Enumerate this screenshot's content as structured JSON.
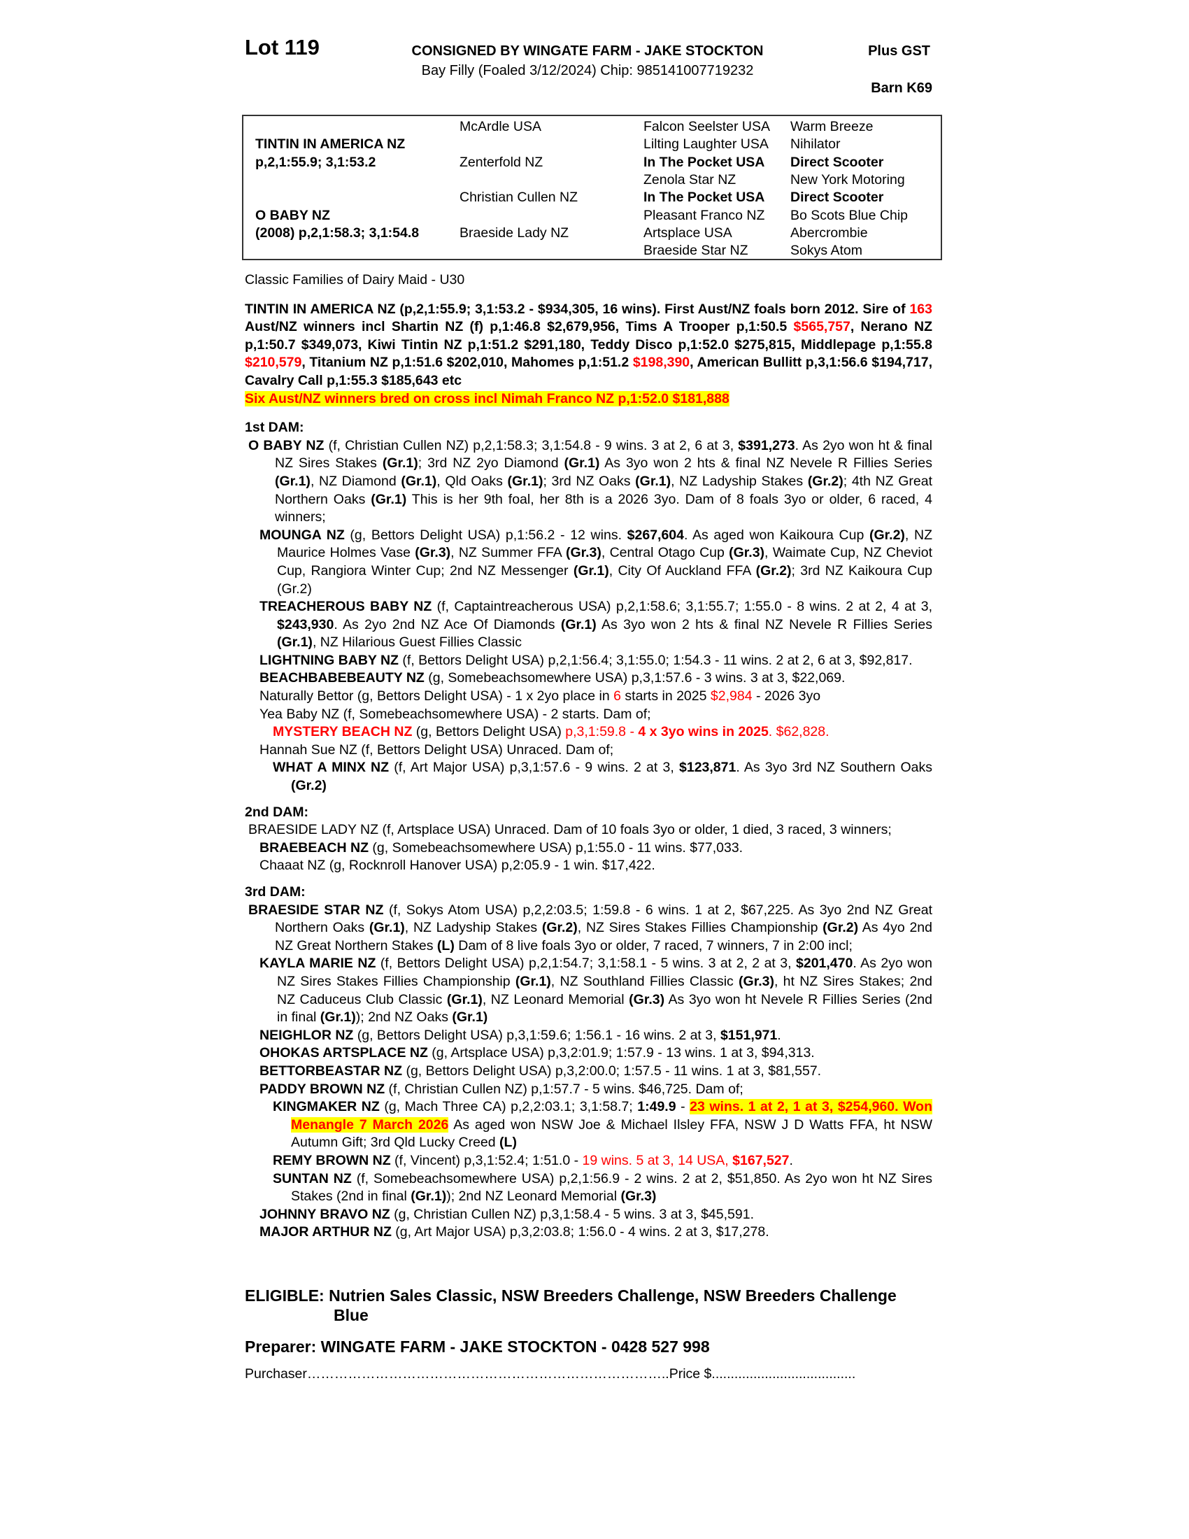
{
  "header": {
    "lot": "Lot 119",
    "consigned": "CONSIGNED BY WINGATE FARM - JAKE STOCKTON",
    "plus_gst": "Plus GST",
    "subline": "Bay Filly (Foaled 3/12/2024) Chip: 985141007719232",
    "barn": "Barn K69"
  },
  "pedigree": [
    [
      {
        "t": "",
        "b": false
      },
      {
        "t": "McArdle USA",
        "b": false
      },
      {
        "t": "Falcon Seelster USA",
        "b": false
      },
      {
        "t": "Warm Breeze",
        "b": false
      }
    ],
    [
      {
        "t": "TINTIN IN AMERICA NZ",
        "b": true
      },
      {
        "t": "",
        "b": false
      },
      {
        "t": "Lilting Laughter USA",
        "b": false
      },
      {
        "t": "Nihilator",
        "b": false
      }
    ],
    [
      {
        "t": "p,2,1:55.9; 3,1:53.2",
        "b": true
      },
      {
        "t": "Zenterfold NZ",
        "b": false
      },
      {
        "t": "In The Pocket USA",
        "b": true
      },
      {
        "t": "Direct Scooter",
        "b": true
      }
    ],
    [
      {
        "t": "",
        "b": false
      },
      {
        "t": "",
        "b": false
      },
      {
        "t": "Zenola Star NZ",
        "b": false
      },
      {
        "t": "New York Motoring",
        "b": false
      }
    ],
    [
      {
        "t": "",
        "b": false
      },
      {
        "t": "Christian Cullen NZ",
        "b": false
      },
      {
        "t": "In The Pocket USA",
        "b": true
      },
      {
        "t": "Direct Scooter",
        "b": true
      }
    ],
    [
      {
        "t": "O BABY NZ",
        "b": true
      },
      {
        "t": "",
        "b": false
      },
      {
        "t": "Pleasant Franco NZ",
        "b": false
      },
      {
        "t": "Bo Scots Blue Chip",
        "b": false
      }
    ],
    [
      {
        "t": "(2008) p,2,1:58.3; 3,1:54.8",
        "b": true
      },
      {
        "t": "Braeside Lady NZ",
        "b": false
      },
      {
        "t": "Artsplace USA",
        "b": false
      },
      {
        "t": "Abercrombie",
        "b": false
      }
    ],
    [
      {
        "t": "",
        "b": false
      },
      {
        "t": "",
        "b": false
      },
      {
        "t": "Braeside Star NZ",
        "b": false
      },
      {
        "t": "Sokys Atom",
        "b": false
      }
    ]
  ],
  "blocks": [
    {
      "cls": "para",
      "runs": [
        {
          "t": "Classic Families of Dairy Maid - U30",
          "s": ""
        }
      ]
    },
    {
      "cls": "para sire gap",
      "runs": [
        {
          "t": "TINTIN IN AMERICA NZ (p,2,1:55.9; 3,1:53.2 - $934,305, 16 wins). First Aust/NZ foals born 2012. Sire of ",
          "s": ""
        },
        {
          "t": "163",
          "s": "r"
        },
        {
          "t": " Aust/NZ winners incl Shartin NZ (f) p,1:46.8 $2,679,956, Tims A Trooper p,1:50.5 ",
          "s": ""
        },
        {
          "t": "$565,757",
          "s": "r"
        },
        {
          "t": ", Nerano NZ p,1:50.7 $349,073, Kiwi Tintin NZ p,1:51.2 $291,180, Teddy Disco p,1:52.0 $275,815, Middlepage p,1:55.8 ",
          "s": ""
        },
        {
          "t": "$210,579",
          "s": "r"
        },
        {
          "t": ", Titanium NZ p,1:51.6 $202,010, Mahomes p,1:51.2 ",
          "s": ""
        },
        {
          "t": "$198,390",
          "s": "r"
        },
        {
          "t": ", American Bullitt p,3,1:56.6 $194,717, Cavalry Call p,1:55.3 $185,643  etc",
          "s": ""
        }
      ]
    },
    {
      "cls": "para sire",
      "runs": [
        {
          "t": "Six Aust/NZ winners bred on cross incl Nimah Franco NZ p,1:52.0 $181,888",
          "s": "r h"
        }
      ]
    },
    {
      "cls": "head gap",
      "runs": [
        {
          "t": "1st DAM:",
          "s": ""
        }
      ]
    },
    {
      "cls": "para lvl0",
      "runs": [
        {
          "t": "O BABY NZ",
          "s": "b"
        },
        {
          "t": " (f, Christian Cullen NZ) p,2,1:58.3; 3,1:54.8 - 9 wins. 3 at 2, 6 at 3, ",
          "s": ""
        },
        {
          "t": "$391,273",
          "s": "b"
        },
        {
          "t": ". As 2yo won ht & final NZ Sires Stakes ",
          "s": ""
        },
        {
          "t": "(Gr.1)",
          "s": "b"
        },
        {
          "t": "; 3rd NZ 2yo Diamond ",
          "s": ""
        },
        {
          "t": "(Gr.1)",
          "s": "b"
        },
        {
          "t": " As 3yo won 2 hts & final NZ Nevele R Fillies Series ",
          "s": ""
        },
        {
          "t": "(Gr.1)",
          "s": "b"
        },
        {
          "t": ", NZ Diamond ",
          "s": ""
        },
        {
          "t": "(Gr.1)",
          "s": "b"
        },
        {
          "t": ", Qld Oaks ",
          "s": ""
        },
        {
          "t": "(Gr.1)",
          "s": "b"
        },
        {
          "t": "; 3rd NZ Oaks ",
          "s": ""
        },
        {
          "t": "(Gr.1)",
          "s": "b"
        },
        {
          "t": ", NZ Ladyship Stakes ",
          "s": ""
        },
        {
          "t": "(Gr.2)",
          "s": "b"
        },
        {
          "t": "; 4th NZ Great Northern Oaks ",
          "s": ""
        },
        {
          "t": "(Gr.1)",
          "s": "b"
        },
        {
          "t": " This is her 9th foal, her 8th is a 2026 3yo. Dam of 8 foals 3yo or older, 6 raced, 4 winners;",
          "s": ""
        }
      ]
    },
    {
      "cls": "para lvl1",
      "runs": [
        {
          "t": "MOUNGA NZ",
          "s": "b"
        },
        {
          "t": " (g, Bettors Delight USA) p,1:56.2 - 12 wins. ",
          "s": ""
        },
        {
          "t": "$267,604",
          "s": "b"
        },
        {
          "t": ". As aged won Kaikoura Cup ",
          "s": ""
        },
        {
          "t": "(Gr.2)",
          "s": "b"
        },
        {
          "t": ", NZ Maurice Holmes Vase ",
          "s": ""
        },
        {
          "t": "(Gr.3)",
          "s": "b"
        },
        {
          "t": ", NZ Summer FFA ",
          "s": ""
        },
        {
          "t": "(Gr.3)",
          "s": "b"
        },
        {
          "t": ", Central Otago Cup ",
          "s": ""
        },
        {
          "t": "(Gr.3)",
          "s": "b"
        },
        {
          "t": ", Waimate Cup, NZ Cheviot Cup, Rangiora Winter Cup; 2nd NZ Messenger ",
          "s": ""
        },
        {
          "t": "(Gr.1)",
          "s": "b"
        },
        {
          "t": ", City Of Auckland FFA ",
          "s": ""
        },
        {
          "t": "(Gr.2)",
          "s": "b"
        },
        {
          "t": "; 3rd NZ Kaikoura Cup (Gr.2)",
          "s": ""
        }
      ]
    },
    {
      "cls": "para lvl1",
      "runs": [
        {
          "t": "TREACHEROUS BABY NZ",
          "s": "b"
        },
        {
          "t": " (f, Captaintreacherous USA) p,2,1:58.6; 3,1:55.7; 1:55.0 - 8 wins. 2 at 2, 4 at 3, ",
          "s": ""
        },
        {
          "t": "$243,930",
          "s": "b"
        },
        {
          "t": ". As 2yo 2nd NZ Ace Of Diamonds ",
          "s": ""
        },
        {
          "t": "(Gr.1)",
          "s": "b"
        },
        {
          "t": " As 3yo won 2 hts & final NZ Nevele R Fillies Series ",
          "s": ""
        },
        {
          "t": "(Gr.1)",
          "s": "b"
        },
        {
          "t": ", NZ Hilarious Guest Fillies Classic",
          "s": ""
        }
      ]
    },
    {
      "cls": "para lvl1",
      "runs": [
        {
          "t": "LIGHTNING BABY NZ",
          "s": "b"
        },
        {
          "t": " (f, Bettors Delight USA) p,2,1:56.4; 3,1:55.0; 1:54.3 - 11 wins. 2 at 2, 6 at 3, $92,817.",
          "s": ""
        }
      ]
    },
    {
      "cls": "para lvl1",
      "runs": [
        {
          "t": "BEACHBABEBEAUTY NZ",
          "s": "b"
        },
        {
          "t": " (g, Somebeachsomewhere USA) p,3,1:57.6 - 3 wins. 3 at 3, $22,069.",
          "s": ""
        }
      ]
    },
    {
      "cls": "para lvl1",
      "runs": [
        {
          "t": "Naturally Bettor (g, Bettors Delight USA) - 1 x 2yo place in ",
          "s": ""
        },
        {
          "t": "6",
          "s": "r"
        },
        {
          "t": " starts in 2025 ",
          "s": ""
        },
        {
          "t": "$2,984",
          "s": "r"
        },
        {
          "t": " - 2026 3yo",
          "s": ""
        }
      ]
    },
    {
      "cls": "para lvl1",
      "runs": [
        {
          "t": "Yea Baby NZ (f, Somebeachsomewhere USA) - 2 starts. Dam of;",
          "s": ""
        }
      ]
    },
    {
      "cls": "para lvl2",
      "runs": [
        {
          "t": "MYSTERY BEACH NZ",
          "s": "b r"
        },
        {
          "t": " (g, Bettors Delight USA) ",
          "s": ""
        },
        {
          "t": "p,3,1:59.8 - ",
          "s": "r"
        },
        {
          "t": "4 x 3yo wins in 2025",
          "s": "b r"
        },
        {
          "t": ". $62,828.",
          "s": "r"
        }
      ]
    },
    {
      "cls": "para lvl1",
      "runs": [
        {
          "t": "Hannah Sue NZ (f, Bettors Delight USA) Unraced. Dam of;",
          "s": ""
        }
      ]
    },
    {
      "cls": "para lvl2",
      "runs": [
        {
          "t": "WHAT A MINX NZ",
          "s": "b"
        },
        {
          "t": " (f, Art Major USA) p,3,1:57.6 - 9 wins. 2 at 3, ",
          "s": ""
        },
        {
          "t": "$123,871",
          "s": "b"
        },
        {
          "t": ". As 3yo 3rd NZ Southern Oaks ",
          "s": ""
        },
        {
          "t": "(Gr.2)",
          "s": "b"
        }
      ]
    },
    {
      "cls": "head",
      "runs": [
        {
          "t": "2nd DAM:",
          "s": ""
        }
      ]
    },
    {
      "cls": "para lvl0",
      "runs": [
        {
          "t": "BRAESIDE LADY NZ (f, Artsplace USA) Unraced. Dam of 10 foals 3yo or older, 1 died, 3 raced, 3 winners;",
          "s": ""
        }
      ]
    },
    {
      "cls": "para lvl1",
      "runs": [
        {
          "t": "BRAEBEACH NZ",
          "s": "b"
        },
        {
          "t": " (g, Somebeachsomewhere USA) p,1:55.0 - 11 wins. $77,033.",
          "s": ""
        }
      ]
    },
    {
      "cls": "para lvl1",
      "runs": [
        {
          "t": "Chaaat NZ (g, Rocknroll Hanover USA) p,2:05.9 - 1 win. $17,422.",
          "s": ""
        }
      ]
    },
    {
      "cls": "head",
      "runs": [
        {
          "t": "3rd DAM:",
          "s": ""
        }
      ]
    },
    {
      "cls": "para lvl0",
      "runs": [
        {
          "t": "BRAESIDE STAR NZ",
          "s": "b"
        },
        {
          "t": " (f, Sokys Atom USA) p,2,2:03.5; 1:59.8 - 6 wins. 1 at 2, $67,225. As 3yo 2nd NZ Great Northern Oaks ",
          "s": ""
        },
        {
          "t": "(Gr.1)",
          "s": "b"
        },
        {
          "t": ", NZ Ladyship Stakes ",
          "s": ""
        },
        {
          "t": "(Gr.2)",
          "s": "b"
        },
        {
          "t": ", NZ Sires Stakes Fillies Championship ",
          "s": ""
        },
        {
          "t": "(Gr.2)",
          "s": "b"
        },
        {
          "t": " As 4yo 2nd NZ Great Northern Stakes ",
          "s": ""
        },
        {
          "t": "(L)",
          "s": "b"
        },
        {
          "t": " Dam of 8 live foals 3yo or older, 7 raced, 7 winners, 7 in 2:00 incl;",
          "s": ""
        }
      ]
    },
    {
      "cls": "para lvl1",
      "runs": [
        {
          "t": "KAYLA MARIE NZ",
          "s": "b"
        },
        {
          "t": " (f, Bettors Delight USA) p,2,1:54.7; 3,1:58.1 - 5 wins. 3 at 2, 2 at 3, ",
          "s": ""
        },
        {
          "t": "$201,470",
          "s": "b"
        },
        {
          "t": ". As 2yo won NZ Sires Stakes Fillies Championship ",
          "s": ""
        },
        {
          "t": "(Gr.1)",
          "s": "b"
        },
        {
          "t": ", NZ Southland Fillies Classic ",
          "s": ""
        },
        {
          "t": "(Gr.3)",
          "s": "b"
        },
        {
          "t": ", ht NZ Sires Stakes; 2nd NZ Caduceus Club Classic ",
          "s": ""
        },
        {
          "t": "(Gr.1)",
          "s": "b"
        },
        {
          "t": ", NZ Leonard Memorial ",
          "s": ""
        },
        {
          "t": "(Gr.3)",
          "s": "b"
        },
        {
          "t": " As 3yo won ht Nevele R Fillies Series (2nd in final ",
          "s": ""
        },
        {
          "t": "(Gr.1)",
          "s": "b"
        },
        {
          "t": "); 2nd NZ Oaks ",
          "s": ""
        },
        {
          "t": "(Gr.1)",
          "s": "b"
        }
      ]
    },
    {
      "cls": "para lvl1",
      "runs": [
        {
          "t": "NEIGHLOR NZ",
          "s": "b"
        },
        {
          "t": " (g, Bettors Delight USA) p,3,1:59.6; 1:56.1 - 16 wins. 2 at 3, ",
          "s": ""
        },
        {
          "t": "$151,971",
          "s": "b"
        },
        {
          "t": ".",
          "s": ""
        }
      ]
    },
    {
      "cls": "para lvl1",
      "runs": [
        {
          "t": "OHOKAS ARTSPLACE NZ",
          "s": "b"
        },
        {
          "t": " (g, Artsplace USA) p,3,2:01.9; 1:57.9 - 13 wins. 1 at 3, $94,313.",
          "s": ""
        }
      ]
    },
    {
      "cls": "para lvl1",
      "runs": [
        {
          "t": "BETTORBEASTAR NZ",
          "s": "b"
        },
        {
          "t": " (g, Bettors Delight USA) p,3,2:00.0; 1:57.5 - 11 wins. 1 at 3, $81,557.",
          "s": ""
        }
      ]
    },
    {
      "cls": "para lvl1",
      "runs": [
        {
          "t": "PADDY BROWN NZ",
          "s": "b"
        },
        {
          "t": " (f, Christian Cullen NZ) p,1:57.7 - 5 wins. $46,725. Dam of;",
          "s": ""
        }
      ]
    },
    {
      "cls": "para lvl2",
      "runs": [
        {
          "t": "KINGMAKER NZ",
          "s": "b"
        },
        {
          "t": " (g, Mach Three CA) p,2,2:03.1; 3,1:58.7; ",
          "s": ""
        },
        {
          "t": "1:49.9",
          "s": "b"
        },
        {
          "t": " - ",
          "s": ""
        },
        {
          "t": "23 wins. 1 at 2, 1 at 3, $254,960. Won Menangle 7 March 2026",
          "s": "b r h"
        },
        {
          "t": "  As aged won NSW Joe & Michael Ilsley FFA, NSW J D Watts FFA, ht NSW Autumn Gift; 3rd Qld Lucky Creed ",
          "s": ""
        },
        {
          "t": "(L)",
          "s": "b"
        }
      ]
    },
    {
      "cls": "para lvl2",
      "runs": [
        {
          "t": "REMY BROWN NZ",
          "s": "b"
        },
        {
          "t": " (f, Vincent) p,3,1:52.4; 1:51.0 - ",
          "s": ""
        },
        {
          "t": "19 wins. 5 at 3, 14 USA, ",
          "s": "r"
        },
        {
          "t": "$167,527",
          "s": "b r"
        },
        {
          "t": ".",
          "s": ""
        }
      ]
    },
    {
      "cls": "para lvl2",
      "runs": [
        {
          "t": "SUNTAN NZ",
          "s": "b"
        },
        {
          "t": " (f, Somebeachsomewhere USA) p,2,1:56.9 - 2 wins. 2 at 2, $51,850. As 2yo won ht NZ Sires Stakes (2nd in final ",
          "s": ""
        },
        {
          "t": "(Gr.1)",
          "s": "b"
        },
        {
          "t": "); 2nd NZ Leonard Memorial ",
          "s": ""
        },
        {
          "t": "(Gr.3)",
          "s": "b"
        }
      ]
    },
    {
      "cls": "para lvl1",
      "runs": [
        {
          "t": "JOHNNY BRAVO NZ",
          "s": "b"
        },
        {
          "t": " (g, Christian Cullen NZ) p,3,1:58.4 - 5 wins. 3 at 3, $45,591.",
          "s": ""
        }
      ]
    },
    {
      "cls": "para lvl1",
      "runs": [
        {
          "t": "MAJOR ARTHUR NZ",
          "s": "b"
        },
        {
          "t": " (g, Art Major USA) p,3,2:03.8; 1:56.0 - 4 wins. 2 at 3, $17,278.",
          "s": ""
        }
      ]
    }
  ],
  "footer": {
    "eligible": "ELIGIBLE: Nutrien Sales Classic, NSW Breeders Challenge, NSW Breeders Challenge Blue",
    "preparer": "Preparer: WINGATE FARM - JAKE STOCKTON - 0428 527 998",
    "purchaser": "Purchaser……………………………………………………………………..Price $......................................"
  },
  "colors": {
    "highlight": "#ffff00",
    "red": "#ff0000"
  }
}
